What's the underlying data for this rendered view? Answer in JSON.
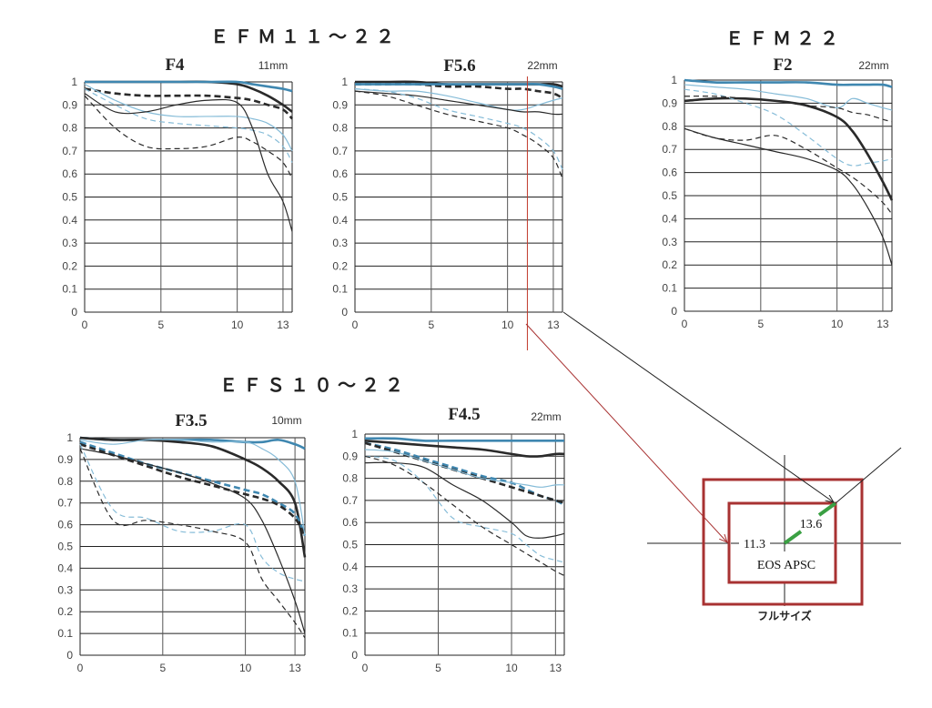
{
  "titles": {
    "efm11_22": "ＥＦＭ１１～２２",
    "efm22": "ＥＦＭ２２",
    "efs10_22": "ＥＦＳ１０～２２"
  },
  "diagram": {
    "label_113": "11.3",
    "label_136": "13.6",
    "label_apsc": "EOS APSC",
    "label_full": "フルサイズ",
    "frame_color": "#a83232",
    "diag_color": "#3aa043"
  },
  "colors": {
    "dark": "#2a2a2a",
    "blue": "#3f87b0",
    "lightblue": "#86bcd8",
    "red_marker": "#c0392b"
  },
  "chart_data": [
    {
      "id": "efm1122_f4",
      "type": "line",
      "title": "F4",
      "subtitle": "11mm",
      "xlim": [
        0,
        13.6
      ],
      "ylim": [
        0,
        1
      ],
      "xticks": [
        "0",
        "5",
        "10",
        "13"
      ],
      "xtick_values": [
        0,
        5,
        10,
        13
      ],
      "yticks": [
        "0",
        "0.1",
        "0.2",
        "0.3",
        "0.4",
        "0.5",
        "0.6",
        "0.7",
        "0.8",
        "0.9",
        "1"
      ],
      "x": [
        0,
        2,
        4,
        6,
        8,
        10,
        11,
        12,
        13,
        13.6
      ],
      "series": [
        {
          "name": "dark-thick-solid",
          "color": "dark",
          "thick": true,
          "dashed": false,
          "values": [
            1,
            1,
            1,
            1,
            1,
            0.99,
            0.97,
            0.94,
            0.9,
            0.87
          ]
        },
        {
          "name": "dark-thick-dashed",
          "color": "dark",
          "thick": true,
          "dashed": true,
          "values": [
            0.97,
            0.95,
            0.94,
            0.94,
            0.94,
            0.93,
            0.92,
            0.9,
            0.88,
            0.84
          ]
        },
        {
          "name": "blue-thick-solid",
          "color": "blue",
          "thick": true,
          "dashed": false,
          "values": [
            1,
            1,
            1,
            1,
            1,
            1,
            0.99,
            0.98,
            0.97,
            0.96
          ]
        },
        {
          "name": "blue-thin-solid",
          "color": "lightblue",
          "thick": false,
          "dashed": false,
          "values": [
            0.99,
            0.92,
            0.87,
            0.85,
            0.85,
            0.85,
            0.84,
            0.82,
            0.77,
            0.7
          ]
        },
        {
          "name": "blue-thin-dashed",
          "color": "lightblue",
          "thick": false,
          "dashed": true,
          "values": [
            0.97,
            0.9,
            0.84,
            0.82,
            0.81,
            0.8,
            0.79,
            0.77,
            0.72,
            0.65
          ]
        },
        {
          "name": "dark-thin-solid",
          "color": "dark",
          "thick": false,
          "dashed": false,
          "values": [
            0.95,
            0.87,
            0.87,
            0.9,
            0.92,
            0.91,
            0.8,
            0.6,
            0.48,
            0.35
          ]
        },
        {
          "name": "dark-thin-dashed",
          "color": "dark",
          "thick": false,
          "dashed": true,
          "values": [
            0.94,
            0.8,
            0.72,
            0.71,
            0.72,
            0.76,
            0.74,
            0.7,
            0.65,
            0.58
          ]
        }
      ]
    },
    {
      "id": "efm1122_f56",
      "type": "line",
      "title": "F5.6",
      "subtitle": "22mm",
      "xlim": [
        0,
        13.6
      ],
      "ylim": [
        0,
        1
      ],
      "xticks": [
        "0",
        "5",
        "10",
        "13"
      ],
      "xtick_values": [
        0,
        5,
        10,
        13
      ],
      "yticks": [
        "0",
        "0.1",
        "0.2",
        "0.3",
        "0.4",
        "0.5",
        "0.6",
        "0.7",
        "0.8",
        "0.9",
        "1"
      ],
      "marker_x": 11.3,
      "x": [
        0,
        2,
        4,
        6,
        8,
        10,
        11,
        12,
        13,
        13.6
      ],
      "series": [
        {
          "name": "dark-thick-solid",
          "color": "dark",
          "thick": true,
          "dashed": false,
          "values": [
            1,
            1,
            1,
            0.99,
            0.99,
            0.99,
            0.99,
            0.99,
            0.99,
            0.98
          ]
        },
        {
          "name": "dark-thick-dashed",
          "color": "dark",
          "thick": true,
          "dashed": true,
          "values": [
            0.99,
            0.99,
            0.99,
            0.98,
            0.98,
            0.97,
            0.97,
            0.96,
            0.95,
            0.93
          ]
        },
        {
          "name": "blue-thick-solid",
          "color": "blue",
          "thick": true,
          "dashed": false,
          "values": [
            0.99,
            0.99,
            0.99,
            0.99,
            0.99,
            0.99,
            0.99,
            0.99,
            0.98,
            0.97
          ]
        },
        {
          "name": "blue-thin-solid",
          "color": "lightblue",
          "thick": false,
          "dashed": false,
          "values": [
            0.97,
            0.96,
            0.96,
            0.94,
            0.91,
            0.88,
            0.88,
            0.9,
            0.92,
            0.93
          ]
        },
        {
          "name": "dark-thin-solid",
          "color": "dark",
          "thick": false,
          "dashed": false,
          "values": [
            0.96,
            0.95,
            0.94,
            0.92,
            0.9,
            0.88,
            0.87,
            0.87,
            0.86,
            0.86
          ]
        },
        {
          "name": "blue-thin-dashed",
          "color": "lightblue",
          "thick": false,
          "dashed": true,
          "values": [
            0.97,
            0.96,
            0.93,
            0.88,
            0.85,
            0.82,
            0.8,
            0.76,
            0.7,
            0.62
          ]
        },
        {
          "name": "dark-thin-dashed",
          "color": "dark",
          "thick": false,
          "dashed": true,
          "values": [
            0.96,
            0.94,
            0.9,
            0.86,
            0.83,
            0.8,
            0.77,
            0.73,
            0.67,
            0.58
          ]
        }
      ]
    },
    {
      "id": "efm22_f2",
      "type": "line",
      "title": "F2",
      "subtitle": "22mm",
      "xlim": [
        0,
        13.6
      ],
      "ylim": [
        0,
        1
      ],
      "xticks": [
        "0",
        "5",
        "10",
        "13"
      ],
      "xtick_values": [
        0,
        5,
        10,
        13
      ],
      "yticks": [
        "0",
        "0.1",
        "0.2",
        "0.3",
        "0.4",
        "0.5",
        "0.6",
        "0.7",
        "0.8",
        "0.9",
        "1"
      ],
      "x": [
        0,
        2,
        4,
        6,
        8,
        10,
        11,
        12,
        13,
        13.6
      ],
      "series": [
        {
          "name": "blue-thick-solid",
          "color": "blue",
          "thick": true,
          "dashed": false,
          "values": [
            1,
            0.99,
            0.99,
            0.99,
            0.99,
            0.98,
            0.98,
            0.98,
            0.98,
            0.97
          ]
        },
        {
          "name": "blue-thin-solid",
          "color": "lightblue",
          "thick": false,
          "dashed": false,
          "values": [
            0.98,
            0.97,
            0.96,
            0.94,
            0.92,
            0.88,
            0.92,
            0.9,
            0.88,
            0.87
          ]
        },
        {
          "name": "dark-thick-solid",
          "color": "dark",
          "thick": true,
          "dashed": false,
          "values": [
            0.91,
            0.92,
            0.92,
            0.91,
            0.89,
            0.84,
            0.78,
            0.68,
            0.56,
            0.48
          ]
        },
        {
          "name": "blue-thin-dashed",
          "color": "lightblue",
          "thick": false,
          "dashed": true,
          "values": [
            0.96,
            0.94,
            0.9,
            0.85,
            0.76,
            0.66,
            0.63,
            0.64,
            0.65,
            0.66
          ]
        },
        {
          "name": "dark-thick-dashed",
          "color": "dark",
          "thick": false,
          "dashed": true,
          "values": [
            0.93,
            0.93,
            0.92,
            0.91,
            0.89,
            0.88,
            0.86,
            0.85,
            0.83,
            0.82
          ]
        },
        {
          "name": "dark-thin-solid",
          "color": "dark",
          "thick": false,
          "dashed": false,
          "values": [
            0.79,
            0.75,
            0.72,
            0.69,
            0.66,
            0.61,
            0.55,
            0.45,
            0.32,
            0.2
          ]
        },
        {
          "name": "dark-thin-dashed",
          "color": "dark",
          "thick": false,
          "dashed": true,
          "values": [
            0.79,
            0.75,
            0.74,
            0.76,
            0.7,
            0.62,
            0.58,
            0.53,
            0.47,
            0.42
          ]
        }
      ]
    },
    {
      "id": "efs1022_f35",
      "type": "line",
      "title": "F3.5",
      "subtitle": "10mm",
      "xlim": [
        0,
        13.6
      ],
      "ylim": [
        0,
        1
      ],
      "xticks": [
        "0",
        "5",
        "10",
        "13"
      ],
      "xtick_values": [
        0,
        5,
        10,
        13
      ],
      "yticks": [
        "0",
        "0.1",
        "0.2",
        "0.3",
        "0.4",
        "0.5",
        "0.6",
        "0.7",
        "0.8",
        "0.9",
        "1"
      ],
      "x": [
        0,
        2,
        4,
        6,
        8,
        10,
        11,
        12,
        13,
        13.6
      ],
      "series": [
        {
          "name": "blue-thick-solid",
          "color": "blue",
          "thick": true,
          "dashed": false,
          "values": [
            1,
            0.99,
            0.99,
            0.99,
            0.99,
            0.98,
            0.98,
            0.99,
            0.97,
            0.95
          ]
        },
        {
          "name": "dark-thick-solid",
          "color": "dark",
          "thick": true,
          "dashed": false,
          "values": [
            1,
            0.99,
            0.99,
            0.98,
            0.96,
            0.9,
            0.86,
            0.8,
            0.7,
            0.45
          ]
        },
        {
          "name": "blue-thick-dashed",
          "color": "blue",
          "thick": true,
          "dashed": true,
          "values": [
            0.98,
            0.93,
            0.88,
            0.84,
            0.8,
            0.76,
            0.74,
            0.7,
            0.65,
            0.55
          ]
        },
        {
          "name": "dark-thick-dashed",
          "color": "dark",
          "thick": true,
          "dashed": true,
          "values": [
            0.97,
            0.92,
            0.87,
            0.82,
            0.78,
            0.74,
            0.72,
            0.69,
            0.63,
            0.55
          ]
        },
        {
          "name": "blue-thin-solid",
          "color": "lightblue",
          "thick": false,
          "dashed": false,
          "values": [
            0.99,
            0.97,
            0.99,
            0.99,
            0.98,
            0.98,
            0.95,
            0.9,
            0.8,
            0.55
          ]
        },
        {
          "name": "dark-thin-solid",
          "color": "dark",
          "thick": false,
          "dashed": false,
          "values": [
            0.95,
            0.92,
            0.88,
            0.84,
            0.79,
            0.72,
            0.62,
            0.45,
            0.25,
            0.1
          ]
        },
        {
          "name": "blue-thin-dashed",
          "color": "lightblue",
          "thick": false,
          "dashed": true,
          "values": [
            0.97,
            0.67,
            0.63,
            0.57,
            0.57,
            0.6,
            0.45,
            0.38,
            0.35,
            0.34
          ]
        },
        {
          "name": "dark-thin-dashed",
          "color": "dark",
          "thick": false,
          "dashed": true,
          "values": [
            0.95,
            0.62,
            0.62,
            0.6,
            0.57,
            0.52,
            0.35,
            0.25,
            0.15,
            0.08
          ]
        }
      ]
    },
    {
      "id": "efs1022_f45",
      "type": "line",
      "title": "F4.5",
      "subtitle": "22mm",
      "xlim": [
        0,
        13.6
      ],
      "ylim": [
        0,
        1
      ],
      "xticks": [
        "0",
        "5",
        "10",
        "13"
      ],
      "xtick_values": [
        0,
        5,
        10,
        13
      ],
      "yticks": [
        "0",
        "0.1",
        "0.2",
        "0.3",
        "0.4",
        "0.5",
        "0.6",
        "0.7",
        "0.8",
        "0.9",
        "1"
      ],
      "x": [
        0,
        2,
        4,
        6,
        8,
        10,
        11,
        12,
        13,
        13.6
      ],
      "series": [
        {
          "name": "blue-thick-solid",
          "color": "blue",
          "thick": true,
          "dashed": false,
          "values": [
            0.98,
            0.98,
            0.97,
            0.97,
            0.97,
            0.97,
            0.97,
            0.97,
            0.97,
            0.97
          ]
        },
        {
          "name": "dark-thick-solid",
          "color": "dark",
          "thick": true,
          "dashed": false,
          "values": [
            0.97,
            0.96,
            0.95,
            0.94,
            0.93,
            0.91,
            0.9,
            0.9,
            0.91,
            0.91
          ]
        },
        {
          "name": "blue-thick-dashed",
          "color": "blue",
          "thick": true,
          "dashed": true,
          "values": [
            0.96,
            0.93,
            0.89,
            0.85,
            0.81,
            0.78,
            0.75,
            0.72,
            0.7,
            0.68
          ]
        },
        {
          "name": "dark-thick-dashed",
          "color": "dark",
          "thick": true,
          "dashed": true,
          "values": [
            0.96,
            0.92,
            0.88,
            0.84,
            0.8,
            0.76,
            0.74,
            0.72,
            0.7,
            0.69
          ]
        },
        {
          "name": "blue-thin-solid",
          "color": "lightblue",
          "thick": false,
          "dashed": false,
          "values": [
            0.93,
            0.92,
            0.88,
            0.84,
            0.8,
            0.78,
            0.77,
            0.76,
            0.77,
            0.77
          ]
        },
        {
          "name": "dark-thin-solid",
          "color": "dark",
          "thick": false,
          "dashed": false,
          "values": [
            0.87,
            0.87,
            0.85,
            0.77,
            0.7,
            0.6,
            0.54,
            0.53,
            0.54,
            0.55
          ]
        },
        {
          "name": "blue-thin-dashed",
          "color": "lightblue",
          "thick": false,
          "dashed": true,
          "values": [
            0.9,
            0.88,
            0.78,
            0.62,
            0.58,
            0.55,
            0.5,
            0.45,
            0.43,
            0.42
          ]
        },
        {
          "name": "dark-thin-dashed",
          "color": "dark",
          "thick": false,
          "dashed": true,
          "values": [
            0.9,
            0.86,
            0.78,
            0.68,
            0.58,
            0.5,
            0.46,
            0.42,
            0.38,
            0.36
          ]
        }
      ]
    }
  ]
}
